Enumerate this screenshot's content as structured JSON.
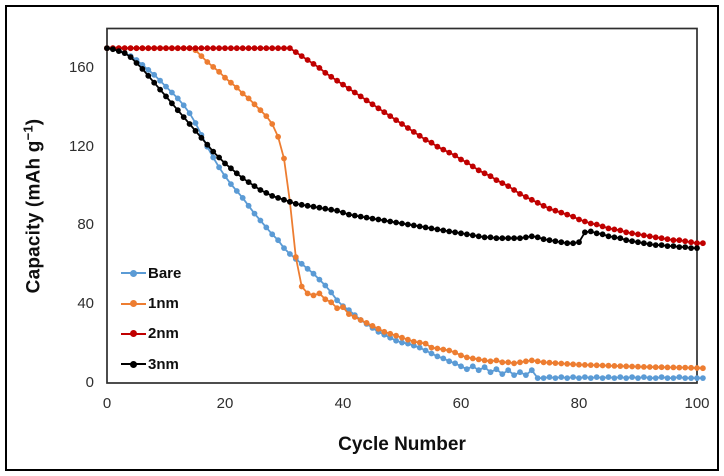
{
  "figure": {
    "border_color": "#000000",
    "background_color": "#ffffff"
  },
  "chart_data": {
    "type": "line",
    "title": "",
    "xlabel": "Cycle Number",
    "ylabel": "Capacity (mAh g⁻¹)",
    "ylabel_prefix": "Capacity (mAh g",
    "ylabel_sup": "−1",
    "ylabel_suffix": ")",
    "xlim": [
      0,
      100
    ],
    "ylim": [
      0,
      180
    ],
    "x_ticks": [
      0,
      20,
      40,
      60,
      80,
      100
    ],
    "y_ticks": [
      0,
      40,
      80,
      120,
      160
    ],
    "grid": false,
    "legend_position": "inside-left",
    "marker": "circle",
    "plot_border_color": "#2e2e2e",
    "series": [
      {
        "name": "Bare",
        "color": "#5B9BD5",
        "x_start": 0,
        "x_step": 1,
        "values": [
          170,
          170,
          169,
          167.5,
          166,
          164,
          161.5,
          159,
          156.5,
          153.5,
          150.5,
          147.5,
          144.5,
          141,
          137,
          132,
          126,
          120,
          114.5,
          109.5,
          105,
          101,
          97.5,
          94,
          90,
          86,
          82.5,
          79,
          75.5,
          72.5,
          68.5,
          65.5,
          63,
          60.5,
          58,
          55.5,
          52.5,
          49.5,
          46,
          42,
          39,
          37,
          34.5,
          32,
          30,
          28,
          26,
          24.5,
          23,
          21.5,
          20.5,
          20,
          19,
          18,
          16.5,
          15,
          13.5,
          12.5,
          11,
          10,
          8.5,
          7,
          8.5,
          6.5,
          8,
          5.5,
          7,
          4.5,
          6.5,
          4,
          5.5,
          4,
          6.5,
          2.5,
          2.5,
          3,
          2.5,
          3,
          2.5,
          3,
          2.5,
          3,
          2.5,
          3,
          2.5,
          3,
          2.5,
          3,
          2.5,
          3,
          2.5,
          3,
          2.5,
          2.5,
          3,
          2.5,
          2.5,
          3,
          2.5,
          2.5,
          2.5,
          2.5
        ]
      },
      {
        "name": "1nm",
        "color": "#ED7D31",
        "x_start": 0,
        "x_step": 1,
        "values": [
          170,
          170,
          170,
          170,
          170,
          170,
          170,
          170,
          170,
          170,
          170,
          170,
          170,
          170,
          170,
          169,
          166,
          163,
          160.5,
          158,
          155,
          152.5,
          150,
          147,
          144.5,
          141.5,
          138.5,
          135.5,
          131.5,
          125,
          114,
          92,
          64,
          49,
          45.5,
          44.5,
          45.5,
          42.5,
          41,
          38,
          38.5,
          35,
          33.5,
          32,
          30.5,
          29,
          27.5,
          26,
          25,
          24,
          23,
          22,
          21,
          20.5,
          20,
          18,
          17.5,
          17,
          16.5,
          15.5,
          14,
          13,
          12.5,
          12,
          11.5,
          11,
          11.5,
          10.5,
          10.5,
          10,
          10.5,
          11,
          11.5,
          11,
          10.5,
          10.3,
          10.1,
          9.9,
          9.7,
          9.5,
          9.3,
          9.2,
          9.1,
          9,
          8.9,
          8.8,
          8.7,
          8.6,
          8.5,
          8.4,
          8.3,
          8.2,
          8.1,
          8,
          8,
          7.9,
          7.9,
          7.8,
          7.8,
          7.7,
          7.6,
          7.5
        ]
      },
      {
        "name": "2nm",
        "color": "#C00000",
        "x_start": 0,
        "x_step": 1,
        "values": [
          170,
          170,
          170,
          170,
          170,
          170,
          170,
          170,
          170,
          170,
          170,
          170,
          170,
          170,
          170,
          170,
          170,
          170,
          170,
          170,
          170,
          170,
          170,
          170,
          170,
          170,
          170,
          170,
          170,
          170,
          170,
          170,
          168,
          166,
          164,
          162,
          160,
          157.5,
          155.5,
          153.5,
          151.5,
          149.5,
          147.5,
          145.5,
          143.5,
          141.5,
          139.5,
          137.5,
          135.5,
          133.5,
          131.5,
          129.5,
          127.5,
          125.5,
          123.5,
          122,
          120,
          118.5,
          117,
          115.5,
          113.5,
          112,
          110,
          108,
          106.5,
          105,
          103,
          101.5,
          100,
          98,
          96,
          94.5,
          93,
          91.5,
          90,
          88.5,
          87.5,
          86.5,
          85.5,
          84.5,
          83,
          82,
          81,
          80.5,
          79.5,
          78.5,
          78,
          77.5,
          76.5,
          76,
          75.5,
          75,
          74.5,
          74,
          73.5,
          73,
          72.5,
          72.5,
          72,
          71.5,
          71,
          71
        ]
      },
      {
        "name": "3nm",
        "color": "#000000",
        "x_start": 0,
        "x_step": 1,
        "values": [
          170,
          169.5,
          168.5,
          167.5,
          165.5,
          162.5,
          159.5,
          156,
          152.5,
          149,
          145.5,
          142,
          138.5,
          135,
          131.5,
          128,
          124.5,
          121,
          117.5,
          114.5,
          111.5,
          109,
          106.5,
          104,
          102,
          100,
          98,
          96.5,
          95,
          94,
          93,
          92,
          91,
          90.5,
          90,
          89.5,
          89,
          88.5,
          88,
          87.5,
          86.5,
          85.5,
          85,
          84.5,
          84,
          83.5,
          83,
          82.5,
          82,
          81.5,
          81,
          80.5,
          80,
          79.5,
          79,
          78.5,
          78,
          77.5,
          77,
          76.5,
          76,
          75.5,
          75,
          74.5,
          74,
          74,
          73.5,
          73.5,
          73.5,
          73.5,
          73.5,
          74,
          74.5,
          74,
          73,
          72.5,
          72,
          71.5,
          71,
          71,
          71.5,
          76.5,
          77,
          76,
          75.5,
          74.5,
          74,
          73.5,
          72.5,
          72,
          71.5,
          71,
          70.5,
          70,
          70,
          69.5,
          69.5,
          69,
          69,
          68.5,
          68.5
        ]
      }
    ]
  }
}
